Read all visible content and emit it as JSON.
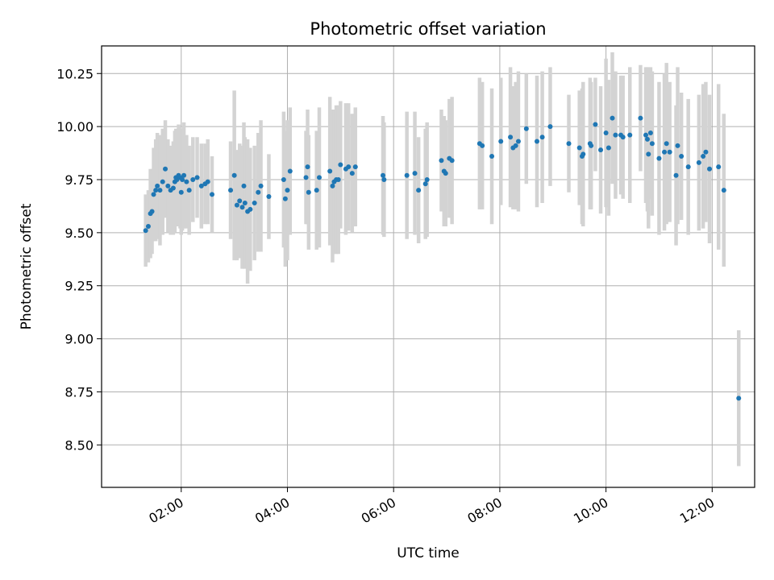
{
  "chart_data": {
    "type": "scatter",
    "title": "Photometric offset variation",
    "xlabel": "UTC time",
    "ylabel": "Photometric offset",
    "x_unit": "hours (UTC)",
    "xlim": [
      0.5,
      12.8
    ],
    "ylim": [
      8.3,
      10.38
    ],
    "grid": true,
    "legend": "none",
    "x_ticks": [
      {
        "value": 2,
        "label": "02:00"
      },
      {
        "value": 4,
        "label": "04:00"
      },
      {
        "value": 6,
        "label": "06:00"
      },
      {
        "value": 8,
        "label": "08:00"
      },
      {
        "value": 10,
        "label": "10:00"
      },
      {
        "value": 12,
        "label": "12:00"
      }
    ],
    "y_ticks": [
      {
        "value": 8.5,
        "label": "8.50"
      },
      {
        "value": 8.75,
        "label": "8.75"
      },
      {
        "value": 9.0,
        "label": "9.00"
      },
      {
        "value": 9.25,
        "label": "9.25"
      },
      {
        "value": 9.5,
        "label": "9.50"
      },
      {
        "value": 9.75,
        "label": "9.75"
      },
      {
        "value": 10.0,
        "label": "10.00"
      },
      {
        "value": 10.25,
        "label": "10.25"
      }
    ],
    "colors": {
      "point": "#1f77b4",
      "errorbar": "#d3d3d3",
      "grid": "#b0b0b0"
    },
    "series": [
      {
        "x": [
          1.33,
          1.38,
          1.42,
          1.45,
          1.48,
          1.52,
          1.55,
          1.6,
          1.65,
          1.7,
          1.75,
          1.8,
          1.85,
          1.88,
          1.9,
          1.92,
          1.95,
          1.98,
          2.0,
          2.02,
          2.05,
          2.1,
          2.15,
          2.22,
          2.3,
          2.38,
          2.45,
          2.5,
          2.58,
          2.93,
          3.0,
          3.05,
          3.1,
          3.15,
          3.18,
          3.2,
          3.25,
          3.3,
          3.38,
          3.45,
          3.5,
          3.65,
          3.93,
          3.96,
          4.0,
          4.05,
          4.35,
          4.38,
          4.4,
          4.55,
          4.6,
          4.8,
          4.85,
          4.88,
          4.92,
          4.96,
          5.0,
          5.1,
          5.15,
          5.22,
          5.28,
          5.8,
          5.82,
          6.25,
          6.4,
          6.47,
          6.6,
          6.63,
          6.9,
          6.95,
          6.98,
          7.05,
          7.1,
          7.62,
          7.67,
          7.85,
          8.02,
          8.2,
          8.25,
          8.3,
          8.35,
          8.5,
          8.7,
          8.8,
          8.95,
          9.3,
          9.5,
          9.55,
          9.57,
          9.7,
          9.72,
          9.8,
          9.9,
          10.0,
          10.05,
          10.12,
          10.18,
          10.28,
          10.32,
          10.45,
          10.65,
          10.75,
          10.78,
          10.8,
          10.84,
          10.87,
          11.0,
          11.1,
          11.14,
          11.2,
          11.32,
          11.35,
          11.42,
          11.55,
          11.75,
          11.83,
          11.88,
          11.95,
          12.12,
          12.22,
          12.5
        ],
        "y": [
          9.51,
          9.53,
          9.59,
          9.6,
          9.68,
          9.7,
          9.72,
          9.7,
          9.74,
          9.8,
          9.72,
          9.7,
          9.71,
          9.74,
          9.76,
          9.75,
          9.77,
          9.76,
          9.69,
          9.75,
          9.77,
          9.74,
          9.7,
          9.75,
          9.76,
          9.72,
          9.73,
          9.74,
          9.68,
          9.7,
          9.77,
          9.63,
          9.65,
          9.62,
          9.72,
          9.64,
          9.6,
          9.61,
          9.64,
          9.69,
          9.72,
          9.67,
          9.75,
          9.66,
          9.7,
          9.79,
          9.76,
          9.81,
          9.69,
          9.7,
          9.76,
          9.79,
          9.72,
          9.74,
          9.75,
          9.75,
          9.82,
          9.8,
          9.81,
          9.78,
          9.81,
          9.77,
          9.75,
          9.77,
          9.78,
          9.7,
          9.73,
          9.75,
          9.84,
          9.79,
          9.78,
          9.85,
          9.84,
          9.92,
          9.91,
          9.86,
          9.93,
          9.95,
          9.9,
          9.91,
          9.93,
          9.99,
          9.93,
          9.95,
          10.0,
          9.92,
          9.9,
          9.86,
          9.87,
          9.92,
          9.91,
          10.01,
          9.89,
          9.97,
          9.9,
          10.04,
          9.96,
          9.96,
          9.95,
          9.96,
          10.04,
          9.96,
          9.94,
          9.87,
          9.97,
          9.92,
          9.85,
          9.88,
          9.92,
          9.88,
          9.77,
          9.91,
          9.86,
          9.81,
          9.83,
          9.86,
          9.88,
          9.8,
          9.81,
          9.7,
          8.72
        ],
        "err": [
          0.17,
          0.17,
          0.21,
          0.2,
          0.22,
          0.24,
          0.25,
          0.26,
          0.25,
          0.23,
          0.22,
          0.21,
          0.22,
          0.24,
          0.23,
          0.22,
          0.24,
          0.24,
          0.2,
          0.24,
          0.25,
          0.22,
          0.21,
          0.2,
          0.19,
          0.2,
          0.19,
          0.2,
          0.18,
          0.23,
          0.4,
          0.26,
          0.27,
          0.29,
          0.3,
          0.31,
          0.34,
          0.29,
          0.27,
          0.28,
          0.31,
          0.2,
          0.32,
          0.32,
          0.33,
          0.3,
          0.22,
          0.27,
          0.27,
          0.28,
          0.33,
          0.35,
          0.36,
          0.34,
          0.35,
          0.35,
          0.3,
          0.31,
          0.3,
          0.28,
          0.28,
          0.28,
          0.27,
          0.3,
          0.29,
          0.25,
          0.26,
          0.27,
          0.24,
          0.26,
          0.25,
          0.28,
          0.3,
          0.31,
          0.3,
          0.32,
          0.3,
          0.33,
          0.29,
          0.3,
          0.33,
          0.26,
          0.31,
          0.31,
          0.28,
          0.23,
          0.27,
          0.32,
          0.34,
          0.31,
          0.3,
          0.22,
          0.3,
          0.35,
          0.32,
          0.31,
          0.3,
          0.28,
          0.29,
          0.32,
          0.25,
          0.32,
          0.34,
          0.35,
          0.31,
          0.34,
          0.36,
          0.37,
          0.38,
          0.33,
          0.33,
          0.37,
          0.3,
          0.32,
          0.32,
          0.34,
          0.33,
          0.35,
          0.39,
          0.36,
          0.32
        ]
      }
    ]
  }
}
